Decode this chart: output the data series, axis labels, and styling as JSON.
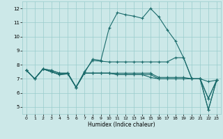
{
  "bg_color": "#cce8e8",
  "grid_color": "#99cccc",
  "line_color": "#1a6b6b",
  "marker": "+",
  "xlabel": "Humidex (Indice chaleur)",
  "xlim": [
    -0.5,
    23.5
  ],
  "ylim": [
    4.5,
    12.5
  ],
  "yticks": [
    5,
    6,
    7,
    8,
    9,
    10,
    11,
    12
  ],
  "xticks": [
    0,
    1,
    2,
    3,
    4,
    5,
    6,
    7,
    8,
    9,
    10,
    11,
    12,
    13,
    14,
    15,
    16,
    17,
    18,
    19,
    20,
    21,
    22,
    23
  ],
  "lines": [
    [
      0,
      7.6,
      1,
      7.0,
      2,
      7.7,
      3,
      7.6,
      4,
      7.4,
      5,
      7.4,
      6,
      6.4,
      7,
      7.4,
      8,
      8.4,
      9,
      8.3,
      10,
      10.6,
      11,
      11.7,
      12,
      11.55,
      13,
      11.45,
      14,
      11.3,
      15,
      12.0,
      16,
      11.4,
      17,
      10.5,
      18,
      9.7,
      19,
      8.5,
      20,
      7.0,
      21,
      7.0,
      22,
      6.8,
      23,
      6.9
    ],
    [
      0,
      7.6,
      1,
      7.0,
      2,
      7.7,
      3,
      7.6,
      4,
      7.4,
      5,
      7.4,
      6,
      6.4,
      7,
      7.5,
      8,
      8.3,
      9,
      8.25,
      10,
      8.2,
      11,
      8.2,
      12,
      8.2,
      13,
      8.2,
      14,
      8.2,
      15,
      8.2,
      16,
      8.2,
      17,
      8.2,
      18,
      8.5,
      19,
      8.5,
      20,
      7.0,
      21,
      7.0,
      22,
      5.6,
      23,
      6.9
    ],
    [
      0,
      7.6,
      1,
      7.0,
      2,
      7.7,
      3,
      7.5,
      4,
      7.3,
      5,
      7.4,
      6,
      6.4,
      7,
      7.4,
      8,
      7.4,
      9,
      7.4,
      10,
      7.4,
      11,
      7.4,
      12,
      7.4,
      13,
      7.4,
      14,
      7.4,
      15,
      7.4,
      16,
      7.1,
      17,
      7.1,
      18,
      7.1,
      19,
      7.1,
      20,
      7.0,
      21,
      7.0,
      22,
      4.8,
      23,
      6.9
    ],
    [
      0,
      7.6,
      1,
      7.0,
      2,
      7.7,
      3,
      7.5,
      4,
      7.3,
      5,
      7.35,
      6,
      6.4,
      7,
      7.4,
      8,
      7.4,
      9,
      7.4,
      10,
      7.4,
      11,
      7.3,
      12,
      7.3,
      13,
      7.3,
      14,
      7.3,
      15,
      7.3,
      16,
      7.0,
      17,
      7.0,
      18,
      7.0,
      19,
      7.0,
      20,
      7.0,
      21,
      7.0,
      22,
      4.8,
      23,
      6.9
    ],
    [
      0,
      7.6,
      1,
      7.0,
      2,
      7.7,
      3,
      7.5,
      4,
      7.3,
      5,
      7.35,
      6,
      6.4,
      7,
      7.4,
      8,
      7.4,
      9,
      7.4,
      10,
      7.4,
      11,
      7.3,
      12,
      7.3,
      13,
      7.3,
      14,
      7.3,
      15,
      7.1,
      16,
      7.0,
      17,
      7.0,
      18,
      7.0,
      19,
      7.0,
      20,
      7.0,
      21,
      7.0,
      22,
      5.6,
      23,
      6.9
    ]
  ]
}
